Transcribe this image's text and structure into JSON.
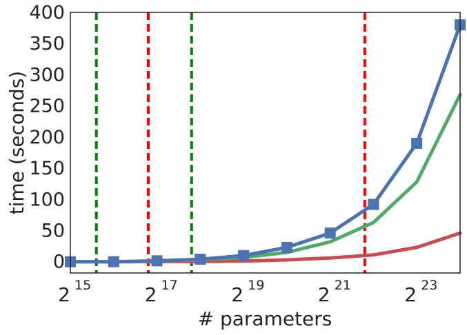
{
  "chart_data": {
    "type": "line",
    "xlabel": "# parameters",
    "ylabel": "time (seconds)",
    "x_scale": "log2",
    "xlim_exp": [
      15,
      24
    ],
    "ylim": [
      -18,
      400
    ],
    "x_ticks": [
      {
        "base": "2",
        "exp": "15",
        "e": 15
      },
      {
        "base": "2",
        "exp": "17",
        "e": 17
      },
      {
        "base": "2",
        "exp": "19",
        "e": 19
      },
      {
        "base": "2",
        "exp": "21",
        "e": 21
      },
      {
        "base": "2",
        "exp": "23",
        "e": 23
      }
    ],
    "y_ticks": [
      {
        "label": "0",
        "value": 0
      },
      {
        "label": "50",
        "value": 50
      },
      {
        "label": "100",
        "value": 100
      },
      {
        "label": "150",
        "value": 150
      },
      {
        "label": "200",
        "value": 200
      },
      {
        "label": "250",
        "value": 250
      },
      {
        "label": "300",
        "value": 300
      },
      {
        "label": "350",
        "value": 350
      },
      {
        "label": "400",
        "value": 400
      }
    ],
    "grid": false,
    "series": [
      {
        "color": "#4c72b0",
        "marker": "square",
        "x_exp": [
          15,
          16,
          17,
          18,
          19,
          20,
          21,
          22,
          23,
          24
        ],
        "values": [
          0,
          0,
          1.5,
          4,
          10,
          23,
          46,
          92,
          190,
          380
        ]
      },
      {
        "color": "#55a868",
        "marker": "none",
        "x_exp": [
          15,
          16,
          17,
          18,
          19,
          20,
          21,
          22,
          23,
          24
        ],
        "values": [
          0,
          0,
          1,
          3,
          7,
          15,
          32,
          63,
          128,
          268
        ]
      },
      {
        "color": "#c44e52",
        "marker": "none",
        "x_exp": [
          15,
          16,
          17,
          18,
          19,
          20,
          21,
          22,
          23,
          24
        ],
        "values": [
          0,
          0,
          0.2,
          0.5,
          1,
          3,
          6,
          11,
          23,
          46
        ]
      }
    ],
    "vlines": [
      {
        "color": "#008000",
        "style": "dashed",
        "x_exp": 15.6
      },
      {
        "color": "#ff0000",
        "style": "dashed",
        "x_exp": 16.8
      },
      {
        "color": "#008000",
        "style": "dashed",
        "x_exp": 17.8
      },
      {
        "color": "#ff0000",
        "style": "dashed",
        "x_exp": 21.8
      }
    ]
  }
}
